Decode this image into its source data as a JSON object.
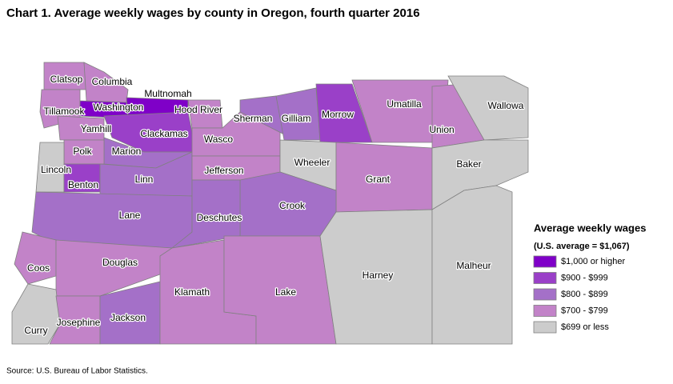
{
  "title": "Chart 1. Average weekly wages by county in Oregon, fourth quarter 2016",
  "legend": {
    "title": "Average weekly wages",
    "subtitle": "(U.S. average = $1,067)",
    "items": [
      {
        "label": "$1,000 or higher",
        "color": "#7f00c8"
      },
      {
        "label": "$900 - $999",
        "color": "#9a40c8"
      },
      {
        "label": "$800 - $899",
        "color": "#a470c8"
      },
      {
        "label": "$700 - $799",
        "color": "#c283c8"
      },
      {
        "label": "$699 or less",
        "color": "#cccccc"
      }
    ]
  },
  "counties": [
    {
      "name": "Clatsop",
      "class": "$700 - $799"
    },
    {
      "name": "Columbia",
      "class": "$700 - $799"
    },
    {
      "name": "Tillamook",
      "class": "$700 - $799"
    },
    {
      "name": "Washington",
      "class": "$1,000 or higher"
    },
    {
      "name": "Multnomah",
      "class": "$1,000 or higher"
    },
    {
      "name": "Hood River",
      "class": "$700 - $799"
    },
    {
      "name": "Yamhill",
      "class": "$700 - $799"
    },
    {
      "name": "Clackamas",
      "class": "$900 - $999"
    },
    {
      "name": "Marion",
      "class": "$800 - $899"
    },
    {
      "name": "Polk",
      "class": "$700 - $799"
    },
    {
      "name": "Lincoln",
      "class": "$699 or less"
    },
    {
      "name": "Benton",
      "class": "$900 - $999"
    },
    {
      "name": "Linn",
      "class": "$800 - $899"
    },
    {
      "name": "Lane",
      "class": "$800 - $899"
    },
    {
      "name": "Wasco",
      "class": "$700 - $799"
    },
    {
      "name": "Jefferson",
      "class": "$700 - $799"
    },
    {
      "name": "Sherman",
      "class": "$800 - $899"
    },
    {
      "name": "Gilliam",
      "class": "$800 - $899"
    },
    {
      "name": "Morrow",
      "class": "$900 - $999"
    },
    {
      "name": "Umatilla",
      "class": "$700 - $799"
    },
    {
      "name": "Union",
      "class": "$700 - $799"
    },
    {
      "name": "Wallowa",
      "class": "$699 or less"
    },
    {
      "name": "Wheeler",
      "class": "$699 or less"
    },
    {
      "name": "Grant",
      "class": "$700 - $799"
    },
    {
      "name": "Baker",
      "class": "$699 or less"
    },
    {
      "name": "Crook",
      "class": "$800 - $899"
    },
    {
      "name": "Deschutes",
      "class": "$800 - $899"
    },
    {
      "name": "Coos",
      "class": "$700 - $799"
    },
    {
      "name": "Douglas",
      "class": "$700 - $799"
    },
    {
      "name": "Curry",
      "class": "$699 or less"
    },
    {
      "name": "Josephine",
      "class": "$700 - $799"
    },
    {
      "name": "Jackson",
      "class": "$800 - $899"
    },
    {
      "name": "Klamath",
      "class": "$700 - $799"
    },
    {
      "name": "Lake",
      "class": "$700 - $799"
    },
    {
      "name": "Harney",
      "class": "$699 or less"
    },
    {
      "name": "Malheur",
      "class": "$699 or less"
    }
  ],
  "source": "Source: U.S. Bureau of Labor Statistics."
}
